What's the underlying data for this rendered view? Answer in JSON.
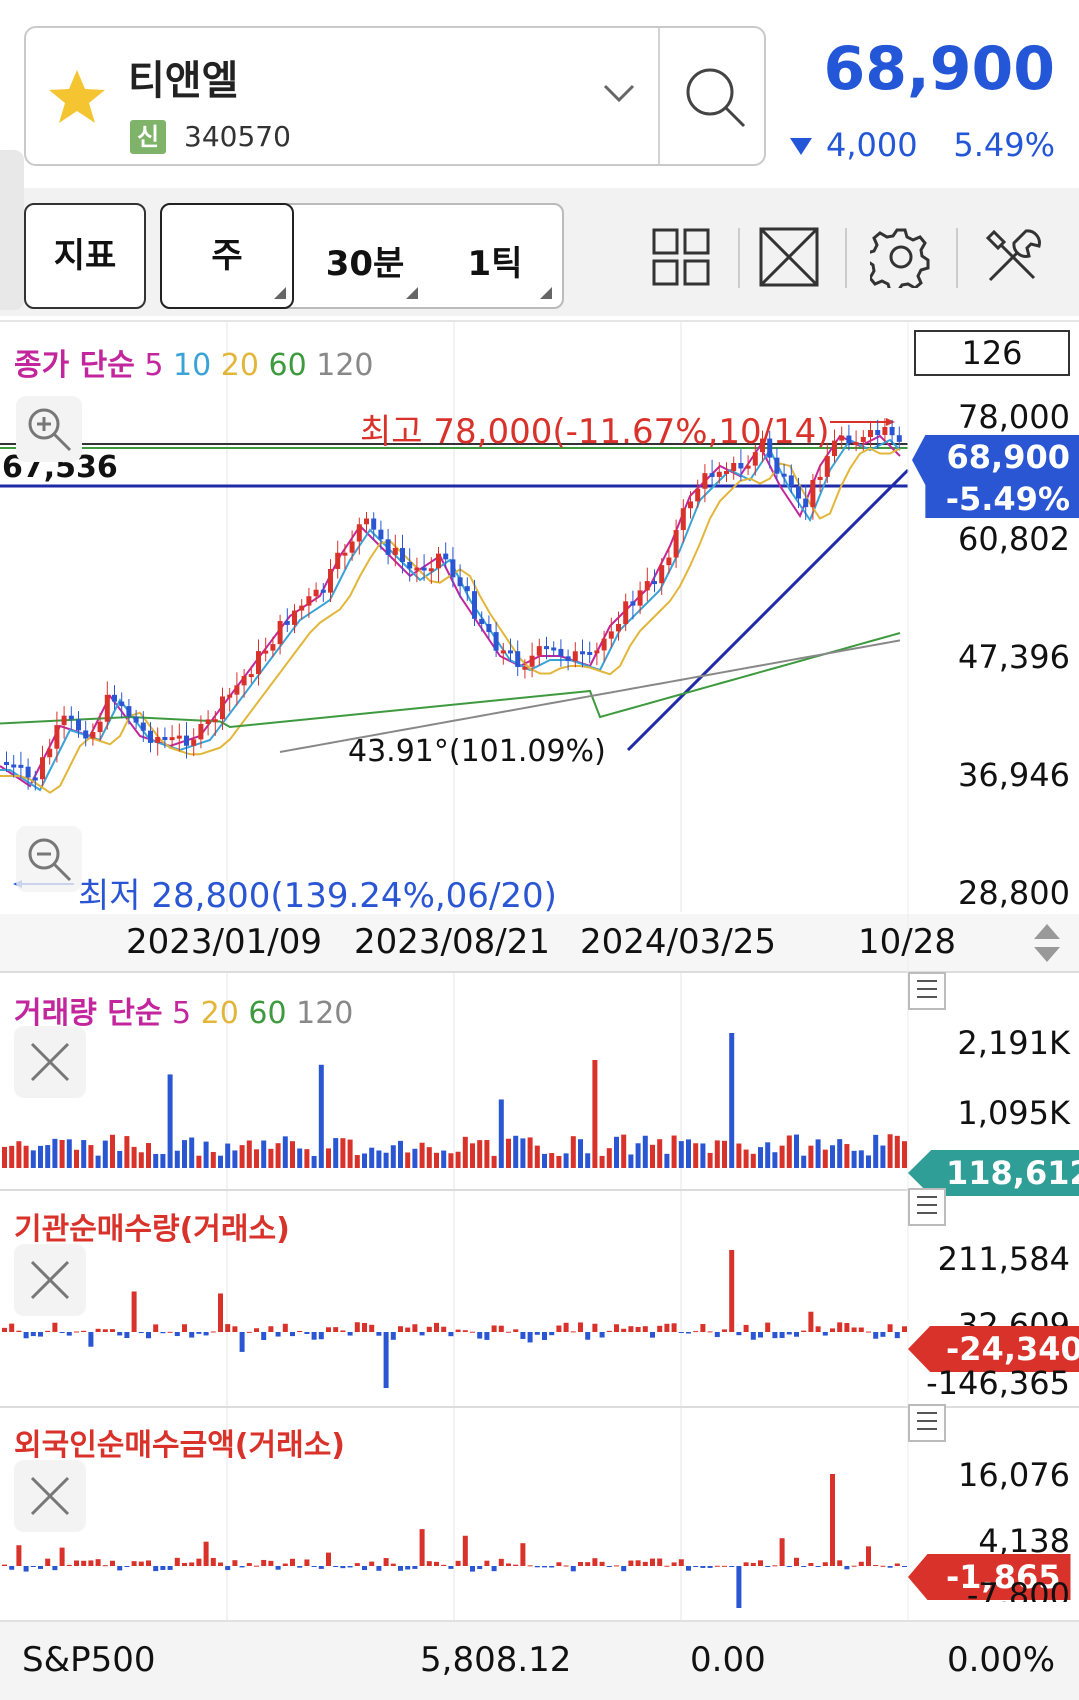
{
  "header": {
    "stock_name": "티앤엘",
    "badge": "신",
    "stock_code": "340570",
    "price": "68,900",
    "change": "4,000",
    "change_pct": "5.49%",
    "icons": [
      "star-icon",
      "chevron-down-icon",
      "search-icon",
      "triangle-down-icon"
    ],
    "colors": {
      "up": "#d9322b",
      "down": "#2a56d3",
      "star": "#f5c431"
    }
  },
  "toolbar": {
    "indicator_label": "지표",
    "periods": [
      "주",
      "30분",
      "1틱"
    ],
    "icons": [
      "grid-layout-icon",
      "fullscreen-icon",
      "gear-icon",
      "tools-icon"
    ]
  },
  "main_chart": {
    "legend": {
      "prefix": "종가 단순",
      "ma": [
        "5",
        "10",
        "20",
        "60",
        "120"
      ]
    },
    "ma_colors": [
      "#c2259c",
      "#3aa3d5",
      "#e2b63a",
      "#3e9a3e",
      "#888888"
    ],
    "count_box": "126",
    "price_axis": [
      "78,000",
      "60,802",
      "47,396",
      "36,946",
      "28,800"
    ],
    "current_price_tag": "68,900",
    "current_pct_tag": "-5.49%",
    "left_level": "67,536",
    "high_annotation": "최고 78,000(-11.67%,10/14)",
    "low_annotation": "최저 28,800(139.24%,06/20)",
    "trendline_label": "43.91°(101.09%)",
    "dates": [
      "2023/01/09",
      "2023/08/21",
      "2024/03/25",
      "10/28"
    ],
    "icons": [
      "zoom-in-icon",
      "zoom-out-icon",
      "scroll-arrows-icon"
    ]
  },
  "volume_panel": {
    "legend": {
      "prefix": "거래량 단순",
      "ma": [
        "5",
        "20",
        "60",
        "120"
      ]
    },
    "axis": [
      "2,191K",
      "1,095K"
    ],
    "tag": "118,612"
  },
  "institution_panel": {
    "title": "기관순매수량(거래소)",
    "axis": [
      "211,584",
      "32,609",
      "-146,365"
    ],
    "tag": "-24,340"
  },
  "foreign_panel": {
    "title": "외국인순매수금액(거래소)",
    "axis": [
      "16,076",
      "4,138",
      "-7,800"
    ],
    "tag": "-1,865"
  },
  "footer": {
    "index_name": "S&P500",
    "index_value": "5,808.12",
    "index_change": "0.00",
    "index_pct": "0.00%"
  }
}
